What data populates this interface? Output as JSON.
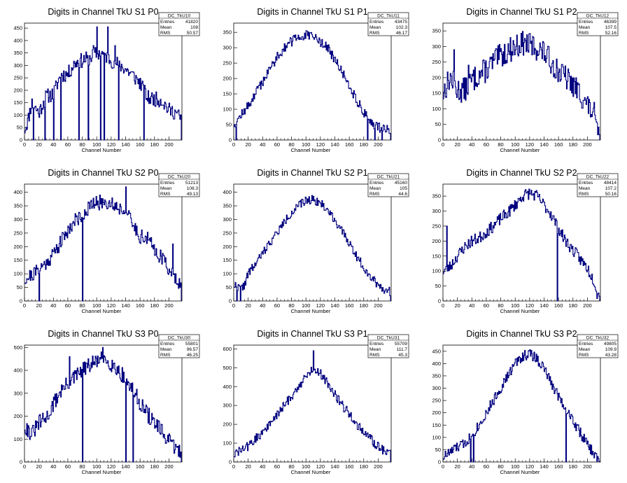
{
  "canvas": {
    "background": "#ffffff",
    "line_color": "#00007f",
    "axis_color": "#000000"
  },
  "chart_data": [
    {
      "type": "histogram",
      "title": "Digits in Channel TkU S1 P0",
      "xlabel": "Channel Number",
      "ylabel": "",
      "xlim": [
        0,
        218
      ],
      "ylim": [
        0,
        470
      ],
      "xticks": [
        0,
        20,
        40,
        60,
        80,
        100,
        120,
        140,
        160,
        180,
        200
      ],
      "yticks": [
        0,
        50,
        100,
        150,
        200,
        250,
        300,
        350,
        400,
        450
      ],
      "stats": {
        "name": "DC_TkU10",
        "Entries": "41820",
        "Mean": "108",
        "RMS": "50.57"
      },
      "profile": [
        [
          0,
          40
        ],
        [
          5,
          80
        ],
        [
          10,
          150
        ],
        [
          20,
          110
        ],
        [
          30,
          175
        ],
        [
          40,
          185
        ],
        [
          50,
          260
        ],
        [
          60,
          265
        ],
        [
          70,
          310
        ],
        [
          80,
          320
        ],
        [
          90,
          330
        ],
        [
          100,
          350
        ],
        [
          110,
          345
        ],
        [
          120,
          320
        ],
        [
          130,
          305
        ],
        [
          140,
          285
        ],
        [
          150,
          260
        ],
        [
          160,
          230
        ],
        [
          170,
          170
        ],
        [
          180,
          165
        ],
        [
          190,
          160
        ],
        [
          200,
          120
        ],
        [
          210,
          110
        ],
        [
          215,
          90
        ]
      ],
      "spikes": [
        [
          12,
          0
        ],
        [
          28,
          0
        ],
        [
          40,
          0
        ],
        [
          50,
          0
        ],
        [
          75,
          0
        ],
        [
          88,
          0
        ],
        [
          95,
          380
        ],
        [
          100,
          455
        ],
        [
          105,
          0
        ],
        [
          110,
          0
        ],
        [
          115,
          455
        ],
        [
          125,
          380
        ],
        [
          130,
          0
        ],
        [
          165,
          0
        ]
      ],
      "seed": 11,
      "noise": 30
    },
    {
      "type": "histogram",
      "title": "Digits in Channel TkU S1 P1",
      "xlabel": "Channel Number",
      "ylabel": "",
      "xlim": [
        0,
        218
      ],
      "ylim": [
        0,
        380
      ],
      "xticks": [
        0,
        20,
        40,
        60,
        80,
        100,
        120,
        140,
        160,
        180,
        200
      ],
      "yticks": [
        0,
        50,
        100,
        150,
        200,
        250,
        300,
        350
      ],
      "stats": {
        "name": "DC_TkU11",
        "Entries": "43475",
        "Mean": "102.3",
        "RMS": "46.17"
      },
      "profile": [
        [
          0,
          50
        ],
        [
          10,
          80
        ],
        [
          20,
          110
        ],
        [
          30,
          150
        ],
        [
          40,
          190
        ],
        [
          50,
          230
        ],
        [
          60,
          270
        ],
        [
          70,
          300
        ],
        [
          80,
          320
        ],
        [
          90,
          335
        ],
        [
          100,
          340
        ],
        [
          110,
          335
        ],
        [
          120,
          320
        ],
        [
          130,
          300
        ],
        [
          140,
          260
        ],
        [
          150,
          220
        ],
        [
          160,
          180
        ],
        [
          170,
          130
        ],
        [
          180,
          90
        ],
        [
          190,
          60
        ],
        [
          200,
          40
        ],
        [
          210,
          40
        ],
        [
          215,
          35
        ]
      ],
      "spikes": [
        [
          3,
          0
        ],
        [
          185,
          0
        ],
        [
          195,
          0
        ],
        [
          205,
          0
        ]
      ],
      "seed": 12,
      "noise": 16
    },
    {
      "type": "histogram",
      "title": "Digits in Channel TkU S1 P2",
      "xlabel": "Channel Number",
      "ylabel": "",
      "xlim": [
        0,
        218
      ],
      "ylim": [
        0,
        375
      ],
      "xticks": [
        0,
        20,
        40,
        60,
        80,
        100,
        120,
        140,
        160,
        180,
        200
      ],
      "yticks": [
        0,
        50,
        100,
        150,
        200,
        250,
        300,
        350
      ],
      "stats": {
        "name": "DC_TkU12",
        "Entries": "46399",
        "Mean": "107.5",
        "RMS": "52.16"
      },
      "profile": [
        [
          0,
          150
        ],
        [
          10,
          200
        ],
        [
          20,
          160
        ],
        [
          30,
          160
        ],
        [
          40,
          190
        ],
        [
          50,
          210
        ],
        [
          60,
          225
        ],
        [
          70,
          250
        ],
        [
          80,
          270
        ],
        [
          90,
          285
        ],
        [
          100,
          300
        ],
        [
          110,
          310
        ],
        [
          120,
          305
        ],
        [
          130,
          295
        ],
        [
          140,
          280
        ],
        [
          150,
          250
        ],
        [
          160,
          220
        ],
        [
          170,
          200
        ],
        [
          180,
          175
        ],
        [
          190,
          150
        ],
        [
          200,
          110
        ],
        [
          210,
          80
        ],
        [
          213,
          20
        ]
      ],
      "spikes": [
        [
          15,
          290
        ],
        [
          35,
          240
        ]
      ],
      "seed": 13,
      "noise": 40
    },
    {
      "type": "histogram",
      "title": "Digits in Channel TkU S2 P0",
      "xlabel": "Channel Number",
      "ylabel": "",
      "xlim": [
        0,
        218
      ],
      "ylim": [
        0,
        430
      ],
      "xticks": [
        0,
        20,
        40,
        60,
        80,
        100,
        120,
        140,
        160,
        180,
        200
      ],
      "yticks": [
        0,
        50,
        100,
        150,
        200,
        250,
        300,
        350,
        400
      ],
      "stats": {
        "name": "DC_TkU20",
        "Entries": "51213",
        "Mean": "108.3",
        "RMS": "49.13"
      },
      "profile": [
        [
          0,
          80
        ],
        [
          10,
          95
        ],
        [
          20,
          115
        ],
        [
          30,
          140
        ],
        [
          40,
          175
        ],
        [
          50,
          215
        ],
        [
          60,
          260
        ],
        [
          70,
          295
        ],
        [
          80,
          320
        ],
        [
          90,
          345
        ],
        [
          100,
          360
        ],
        [
          110,
          365
        ],
        [
          120,
          360
        ],
        [
          130,
          345
        ],
        [
          140,
          330
        ],
        [
          150,
          280
        ],
        [
          160,
          240
        ],
        [
          170,
          230
        ],
        [
          180,
          190
        ],
        [
          190,
          160
        ],
        [
          200,
          120
        ],
        [
          210,
          90
        ],
        [
          216,
          60
        ]
      ],
      "spikes": [
        [
          20,
          0
        ],
        [
          80,
          0
        ],
        [
          140,
          420
        ],
        [
          205,
          210
        ]
      ],
      "seed": 21,
      "noise": 28
    },
    {
      "type": "histogram",
      "title": "Digits in Channel TkU S2 P1",
      "xlabel": "Channel Number",
      "ylabel": "",
      "xlim": [
        0,
        218
      ],
      "ylim": [
        0,
        430
      ],
      "xticks": [
        0,
        20,
        40,
        60,
        80,
        100,
        120,
        140,
        160,
        180,
        200
      ],
      "yticks": [
        0,
        50,
        100,
        150,
        200,
        250,
        300,
        350,
        400
      ],
      "stats": {
        "name": "DC_TkU21",
        "Entries": "45160",
        "Mean": "105",
        "RMS": "44.6"
      },
      "profile": [
        [
          0,
          60
        ],
        [
          10,
          45
        ],
        [
          15,
          60
        ],
        [
          20,
          100
        ],
        [
          30,
          135
        ],
        [
          40,
          175
        ],
        [
          50,
          215
        ],
        [
          60,
          250
        ],
        [
          70,
          290
        ],
        [
          80,
          325
        ],
        [
          90,
          350
        ],
        [
          100,
          370
        ],
        [
          110,
          375
        ],
        [
          120,
          360
        ],
        [
          130,
          335
        ],
        [
          140,
          300
        ],
        [
          150,
          255
        ],
        [
          160,
          215
        ],
        [
          170,
          165
        ],
        [
          180,
          125
        ],
        [
          190,
          90
        ],
        [
          200,
          60
        ],
        [
          210,
          40
        ],
        [
          216,
          35
        ]
      ],
      "spikes": [
        [
          4,
          0
        ],
        [
          9,
          0
        ]
      ],
      "seed": 22,
      "noise": 16
    },
    {
      "type": "histogram",
      "title": "Digits in Channel TkU S2 P2",
      "xlabel": "Channel Number",
      "ylabel": "",
      "xlim": [
        0,
        218
      ],
      "ylim": [
        0,
        390
      ],
      "xticks": [
        0,
        20,
        40,
        60,
        80,
        100,
        120,
        140,
        160,
        180,
        200
      ],
      "yticks": [
        0,
        50,
        100,
        150,
        200,
        250,
        300,
        350
      ],
      "stats": {
        "name": "DC_TkU22",
        "Entries": "48414",
        "Mean": "107.2",
        "RMS": "50.16"
      },
      "profile": [
        [
          0,
          100
        ],
        [
          10,
          115
        ],
        [
          20,
          150
        ],
        [
          30,
          180
        ],
        [
          40,
          200
        ],
        [
          50,
          210
        ],
        [
          60,
          230
        ],
        [
          70,
          250
        ],
        [
          80,
          275
        ],
        [
          90,
          295
        ],
        [
          100,
          320
        ],
        [
          110,
          350
        ],
        [
          120,
          360
        ],
        [
          130,
          350
        ],
        [
          140,
          320
        ],
        [
          150,
          290
        ],
        [
          160,
          240
        ],
        [
          170,
          200
        ],
        [
          180,
          170
        ],
        [
          190,
          140
        ],
        [
          200,
          110
        ],
        [
          210,
          65
        ],
        [
          214,
          20
        ]
      ],
      "spikes": [
        [
          5,
          250
        ],
        [
          158,
          0
        ]
      ],
      "seed": 23,
      "noise": 20
    },
    {
      "type": "histogram",
      "title": "Digits in Channel TkU S3 P0",
      "xlabel": "Channel Number",
      "ylabel": "",
      "xlim": [
        0,
        218
      ],
      "ylim": [
        0,
        510
      ],
      "xticks": [
        0,
        20,
        40,
        60,
        80,
        100,
        120,
        140,
        160,
        180,
        200
      ],
      "yticks": [
        0,
        100,
        200,
        300,
        400,
        500
      ],
      "stats": {
        "name": "DC_TkU30",
        "Entries": "55801",
        "Mean": "96.57",
        "RMS": "46.25"
      },
      "profile": [
        [
          0,
          160
        ],
        [
          10,
          120
        ],
        [
          20,
          170
        ],
        [
          30,
          190
        ],
        [
          40,
          250
        ],
        [
          50,
          310
        ],
        [
          60,
          340
        ],
        [
          70,
          370
        ],
        [
          80,
          400
        ],
        [
          90,
          420
        ],
        [
          100,
          440
        ],
        [
          110,
          450
        ],
        [
          120,
          430
        ],
        [
          130,
          400
        ],
        [
          140,
          360
        ],
        [
          150,
          310
        ],
        [
          160,
          260
        ],
        [
          170,
          210
        ],
        [
          180,
          170
        ],
        [
          190,
          130
        ],
        [
          200,
          90
        ],
        [
          210,
          60
        ],
        [
          216,
          40
        ]
      ],
      "spikes": [
        [
          80,
          0
        ],
        [
          140,
          0
        ],
        [
          150,
          0
        ],
        [
          62,
          460
        ],
        [
          108,
          500
        ]
      ],
      "seed": 31,
      "noise": 35
    },
    {
      "type": "histogram",
      "title": "Digits in Channel TkU S3 P1",
      "xlabel": "Channel Number",
      "ylabel": "",
      "xlim": [
        0,
        218
      ],
      "ylim": [
        0,
        620
      ],
      "xticks": [
        0,
        20,
        40,
        60,
        80,
        100,
        120,
        140,
        160,
        180,
        200
      ],
      "yticks": [
        0,
        100,
        200,
        300,
        400,
        500,
        600
      ],
      "stats": {
        "name": "DC_TkU31",
        "Entries": "55709",
        "Mean": "111.7",
        "RMS": "45.3"
      },
      "profile": [
        [
          0,
          40
        ],
        [
          10,
          60
        ],
        [
          20,
          85
        ],
        [
          30,
          120
        ],
        [
          40,
          160
        ],
        [
          50,
          200
        ],
        [
          60,
          250
        ],
        [
          70,
          300
        ],
        [
          80,
          350
        ],
        [
          90,
          400
        ],
        [
          100,
          450
        ],
        [
          110,
          500
        ],
        [
          120,
          470
        ],
        [
          130,
          420
        ],
        [
          140,
          360
        ],
        [
          150,
          300
        ],
        [
          160,
          260
        ],
        [
          170,
          200
        ],
        [
          180,
          160
        ],
        [
          190,
          120
        ],
        [
          200,
          80
        ],
        [
          210,
          60
        ],
        [
          216,
          40
        ]
      ],
      "spikes": [
        [
          110,
          590
        ]
      ],
      "seed": 32,
      "noise": 25
    },
    {
      "type": "histogram",
      "title": "Digits in Channel TkU S3 P2",
      "xlabel": "Channel Number",
      "ylabel": "",
      "xlim": [
        0,
        218
      ],
      "ylim": [
        0,
        475
      ],
      "xticks": [
        0,
        20,
        40,
        60,
        80,
        100,
        120,
        140,
        160,
        180,
        200
      ],
      "yticks": [
        0,
        50,
        100,
        150,
        200,
        250,
        300,
        350,
        400,
        450
      ],
      "stats": {
        "name": "DC_TkU32",
        "Entries": "49805",
        "Mean": "109.9",
        "RMS": "43.28"
      },
      "profile": [
        [
          0,
          20
        ],
        [
          10,
          40
        ],
        [
          20,
          60
        ],
        [
          30,
          75
        ],
        [
          40,
          110
        ],
        [
          50,
          150
        ],
        [
          60,
          200
        ],
        [
          70,
          250
        ],
        [
          80,
          300
        ],
        [
          90,
          350
        ],
        [
          100,
          400
        ],
        [
          110,
          430
        ],
        [
          120,
          440
        ],
        [
          130,
          420
        ],
        [
          140,
          380
        ],
        [
          150,
          320
        ],
        [
          160,
          270
        ],
        [
          170,
          220
        ],
        [
          180,
          170
        ],
        [
          190,
          120
        ],
        [
          200,
          70
        ],
        [
          210,
          30
        ],
        [
          215,
          10
        ]
      ],
      "spikes": [
        [
          38,
          0
        ],
        [
          42,
          0
        ],
        [
          170,
          0
        ]
      ],
      "seed": 33,
      "noise": 22
    }
  ]
}
